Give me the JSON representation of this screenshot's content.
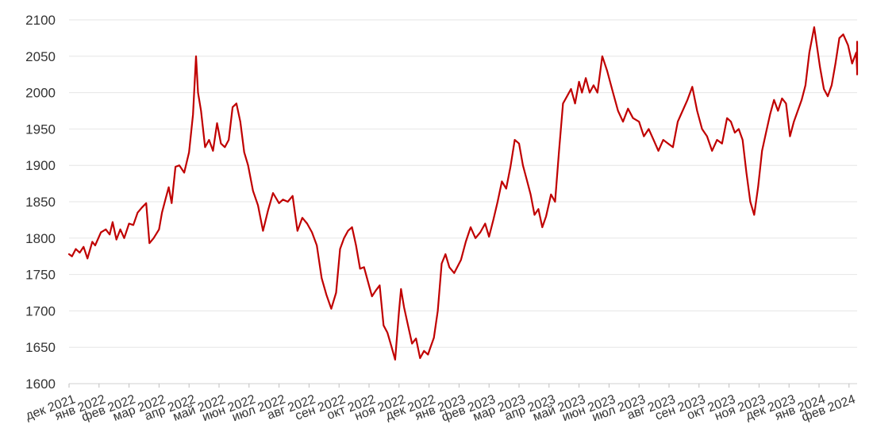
{
  "chart_data": {
    "type": "line",
    "title": "",
    "xlabel": "",
    "ylabel": "",
    "ylim": [
      1600,
      2100
    ],
    "yticks": [
      1600,
      1650,
      1700,
      1750,
      1800,
      1850,
      1900,
      1950,
      2000,
      2050,
      2100
    ],
    "xticks": [
      "дек 2021",
      "янв 2022",
      "фев 2022",
      "мар 2022",
      "апр 2022",
      "май 2022",
      "июн 2022",
      "июл 2022",
      "авг 2022",
      "сен 2022",
      "окт 2022",
      "ноя 2022",
      "дек 2022",
      "янв 2023",
      "фев 2023",
      "мар 2023",
      "апр 2023",
      "май 2023",
      "июн 2023",
      "июл 2023",
      "авг 2023",
      "сен 2023",
      "окт 2023",
      "ноя 2023",
      "дек 2023",
      "янв 2024",
      "фев 2024"
    ],
    "grid": true,
    "legend": "none",
    "colors": {
      "line": "#c00000",
      "grid": "#e6e6e6"
    },
    "series": [
      {
        "x": [
          "2021-12-01",
          "2021-12-04",
          "2021-12-08",
          "2021-12-12",
          "2021-12-16",
          "2021-12-20",
          "2021-12-25",
          "2021-12-28",
          "2022-01-03",
          "2022-01-08",
          "2022-01-12",
          "2022-01-15",
          "2022-01-19",
          "2022-01-23",
          "2022-01-27",
          "2022-02-01",
          "2022-02-05",
          "2022-02-09",
          "2022-02-13",
          "2022-02-17",
          "2022-02-20",
          "2022-02-24",
          "2022-03-01",
          "2022-03-04",
          "2022-03-08",
          "2022-03-11",
          "2022-03-14",
          "2022-03-18",
          "2022-03-22",
          "2022-03-27",
          "2022-04-01",
          "2022-04-05",
          "2022-04-08",
          "2022-04-10",
          "2022-04-13",
          "2022-04-17",
          "2022-04-21",
          "2022-04-25",
          "2022-04-29",
          "2022-05-03",
          "2022-05-07",
          "2022-05-11",
          "2022-05-15",
          "2022-05-19",
          "2022-05-23",
          "2022-05-27",
          "2022-05-31",
          "2022-06-05",
          "2022-06-10",
          "2022-06-15",
          "2022-06-20",
          "2022-06-25",
          "2022-07-01",
          "2022-07-05",
          "2022-07-10",
          "2022-07-15",
          "2022-07-20",
          "2022-07-25",
          "2022-07-30",
          "2022-08-04",
          "2022-08-09",
          "2022-08-14",
          "2022-08-19",
          "2022-08-24",
          "2022-08-29",
          "2022-09-02",
          "2022-09-06",
          "2022-09-10",
          "2022-09-14",
          "2022-09-18",
          "2022-09-22",
          "2022-09-26",
          "2022-09-30",
          "2022-10-04",
          "2022-10-08",
          "2022-10-12",
          "2022-10-16",
          "2022-10-20",
          "2022-10-24",
          "2022-10-28",
          "2022-11-01",
          "2022-11-03",
          "2022-11-06",
          "2022-11-10",
          "2022-11-14",
          "2022-11-18",
          "2022-11-22",
          "2022-11-26",
          "2022-11-30",
          "2022-12-02",
          "2022-12-06",
          "2022-12-10",
          "2022-12-14",
          "2022-12-18",
          "2022-12-22",
          "2022-12-27",
          "2023-01-03",
          "2023-01-08",
          "2023-01-13",
          "2023-01-18",
          "2023-01-23",
          "2023-01-28",
          "2023-02-01",
          "2023-02-05",
          "2023-02-09",
          "2023-02-13",
          "2023-02-17",
          "2023-02-21",
          "2023-02-25",
          "2023-03-01",
          "2023-03-05",
          "2023-03-09",
          "2023-03-13",
          "2023-03-17",
          "2023-03-21",
          "2023-03-25",
          "2023-03-29",
          "2023-04-03",
          "2023-04-07",
          "2023-04-11",
          "2023-04-15",
          "2023-04-19",
          "2023-04-23",
          "2023-04-27",
          "2023-05-01",
          "2023-05-04",
          "2023-05-08",
          "2023-05-12",
          "2023-05-16",
          "2023-05-20",
          "2023-05-25",
          "2023-05-30",
          "2023-06-05",
          "2023-06-10",
          "2023-06-15",
          "2023-06-20",
          "2023-06-25",
          "2023-07-01",
          "2023-07-06",
          "2023-07-11",
          "2023-07-16",
          "2023-07-21",
          "2023-07-26",
          "2023-07-31",
          "2023-08-05",
          "2023-08-10",
          "2023-08-15",
          "2023-08-20",
          "2023-08-25",
          "2023-08-30",
          "2023-09-04",
          "2023-09-09",
          "2023-09-14",
          "2023-09-19",
          "2023-09-24",
          "2023-09-29",
          "2023-10-03",
          "2023-10-07",
          "2023-10-11",
          "2023-10-15",
          "2023-10-19",
          "2023-10-23",
          "2023-10-27",
          "2023-10-31",
          "2023-11-04",
          "2023-11-08",
          "2023-11-12",
          "2023-11-16",
          "2023-11-20",
          "2023-11-24",
          "2023-11-28",
          "2023-12-02",
          "2023-12-06",
          "2023-12-10",
          "2023-12-14",
          "2023-12-18",
          "2023-12-22",
          "2023-12-27",
          "2024-01-02",
          "2024-01-06",
          "2024-01-10",
          "2024-01-14",
          "2024-01-18",
          "2024-01-22",
          "2024-01-26",
          "2024-01-31",
          "2024-02-04",
          "2024-02-08",
          "2024-02-12",
          "2024-02-16",
          "2024-02-20",
          "2024-02-24",
          "2024-02-28"
        ],
        "values": [
          1778,
          1775,
          1785,
          1780,
          1788,
          1772,
          1795,
          1790,
          1808,
          1812,
          1805,
          1822,
          1798,
          1812,
          1800,
          1820,
          1818,
          1835,
          1842,
          1848,
          1793,
          1800,
          1812,
          1835,
          1855,
          1870,
          1848,
          1898,
          1900,
          1890,
          1918,
          1970,
          2050,
          2000,
          1975,
          1925,
          1935,
          1920,
          1958,
          1930,
          1925,
          1935,
          1980,
          1985,
          1960,
          1918,
          1900,
          1865,
          1845,
          1810,
          1838,
          1862,
          1848,
          1853,
          1850,
          1858,
          1810,
          1828,
          1820,
          1808,
          1790,
          1745,
          1722,
          1703,
          1725,
          1785,
          1800,
          1810,
          1815,
          1790,
          1758,
          1760,
          1740,
          1720,
          1728,
          1735,
          1680,
          1670,
          1652,
          1633,
          1700,
          1730,
          1705,
          1680,
          1655,
          1662,
          1635,
          1645,
          1640,
          1648,
          1663,
          1700,
          1765,
          1778,
          1760,
          1752,
          1770,
          1795,
          1815,
          1800,
          1808,
          1820,
          1802,
          1825,
          1850,
          1878,
          1868,
          1898,
          1935,
          1930,
          1900,
          1880,
          1860,
          1832,
          1840,
          1815,
          1830,
          1860,
          1850,
          1920,
          1985,
          1995,
          2005,
          1985,
          2015,
          2000,
          2020,
          2000,
          2010,
          2000,
          2050,
          2030,
          2000,
          1975,
          1960,
          1978,
          1965,
          1960,
          1940,
          1950,
          1935,
          1920,
          1935,
          1930,
          1925,
          1960,
          1975,
          1990,
          2008,
          1975,
          1950,
          1940,
          1920,
          1935,
          1930,
          1965,
          1960,
          1945,
          1950,
          1935,
          1890,
          1850,
          1832,
          1870,
          1920,
          1945,
          1970,
          1990,
          1975,
          1992,
          1985,
          1940,
          1960,
          1975,
          1990,
          2010,
          2055,
          2090,
          2035,
          2005,
          1995,
          2010,
          2040,
          2075,
          2080,
          2065,
          2040,
          2055,
          2030,
          2050,
          2070,
          2040,
          2025
        ]
      }
    ]
  }
}
